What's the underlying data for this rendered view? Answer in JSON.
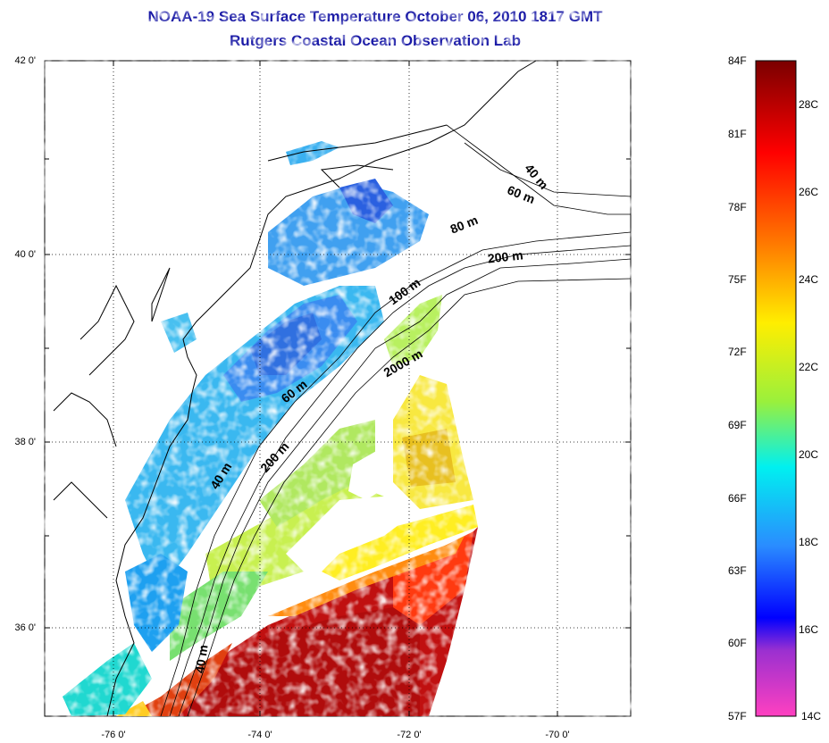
{
  "title": {
    "line1": "NOAA-19 Sea Surface Temperature October 06, 2010 1817 GMT",
    "line2": "Rutgers Coastal Ocean Observation Lab"
  },
  "map": {
    "lon_ticks": [
      "-76 0'",
      "-74 0'",
      "-72 0'",
      "-70 0'"
    ],
    "lat_ticks": [
      "42 0'",
      "40 0'",
      "38 0'",
      "36 0'"
    ],
    "contours": [
      "40 m",
      "60 m",
      "80 m",
      "200 m",
      "100 m",
      "2000 m",
      "60 m",
      "200 m",
      "40 m",
      "40 m"
    ]
  },
  "colorbar": {
    "fahrenheit": [
      "84F",
      "81F",
      "78F",
      "75F",
      "72F",
      "69F",
      "66F",
      "63F",
      "60F",
      "57F"
    ],
    "celsius": [
      "28C",
      "26C",
      "24C",
      "22C",
      "20C",
      "18C",
      "16C",
      "14C"
    ],
    "colors": [
      "#8b0000",
      "#ff0000",
      "#ff8c00",
      "#ffff00",
      "#90ee40",
      "#00ffff",
      "#1e90ff",
      "#0000ff",
      "#9932cc",
      "#ff69b4"
    ]
  }
}
